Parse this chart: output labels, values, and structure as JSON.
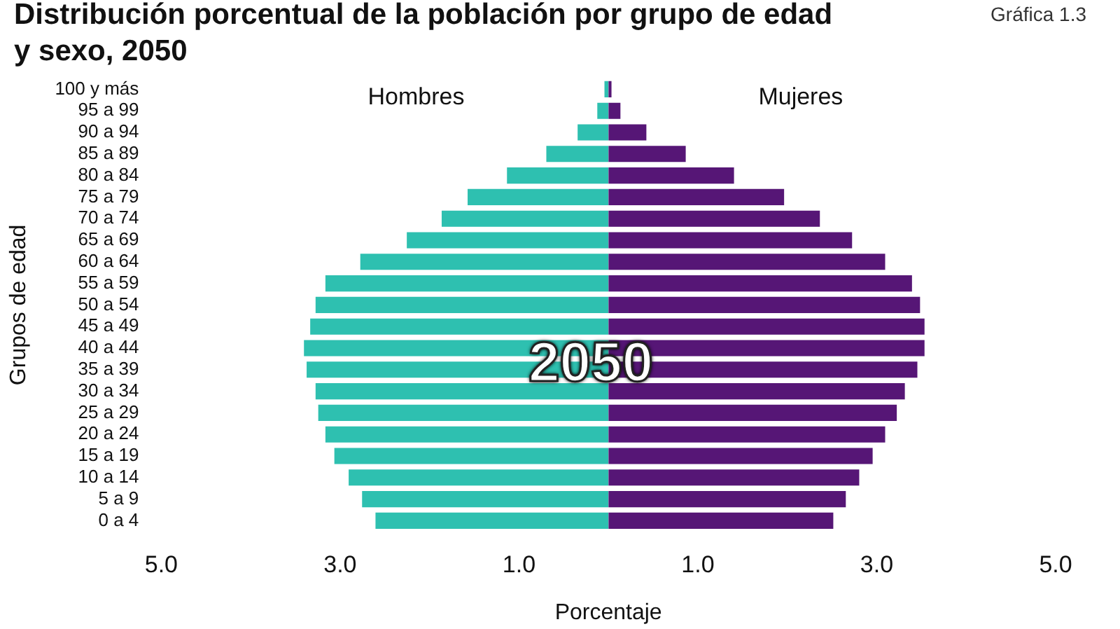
{
  "chart_data": {
    "type": "bar",
    "orientation": "horizontal",
    "stacked": true,
    "title": "Distribución porcentual de la población por grupo de edad y sexo, 2050",
    "xlabel": "Porcentaje",
    "ylabel": "Grupos de edad",
    "annotations": [
      "Gráfica 1.3",
      "2050"
    ],
    "categories": [
      "100 y más",
      "95 a 99",
      "90 a 94",
      "85 a 89",
      "80 a 84",
      "75 a 79",
      "70 a 74",
      "65 a 69",
      "60 a 64",
      "55 a 59",
      "50 a 54",
      "45 a 49",
      "40 a 44",
      "35 a 39",
      "30 a 34",
      "25 a 29",
      "20 a 24",
      "15 a 19",
      "10 a 14",
      "5 a 9",
      "0 a 4"
    ],
    "series": [
      {
        "name": "Hombres",
        "color": "#2ec0b0",
        "values": [
          -0.06,
          -0.14,
          -0.36,
          -0.71,
          -1.15,
          -1.59,
          -1.88,
          -2.27,
          -2.79,
          -3.18,
          -3.29,
          -3.35,
          -3.42,
          -3.39,
          -3.29,
          -3.26,
          -3.18,
          -3.08,
          -2.92,
          -2.77,
          -2.62
        ]
      },
      {
        "name": "Mujeres",
        "color": "#561676",
        "values": [
          0.05,
          0.15,
          0.44,
          0.88,
          1.42,
          1.98,
          2.38,
          2.74,
          3.11,
          3.41,
          3.5,
          3.55,
          3.55,
          3.47,
          3.33,
          3.24,
          3.11,
          2.97,
          2.82,
          2.67,
          2.53
        ]
      }
    ],
    "xlim": [
      -5,
      5
    ],
    "xticks": [
      {
        "value": -5,
        "label": "5.0"
      },
      {
        "value": -3,
        "label": "3.0"
      },
      {
        "value": -1,
        "label": "1.0"
      },
      {
        "value": 1,
        "label": "1.0"
      },
      {
        "value": 3,
        "label": "3.0"
      },
      {
        "value": 5,
        "label": "5.0"
      }
    ],
    "legend": false
  }
}
